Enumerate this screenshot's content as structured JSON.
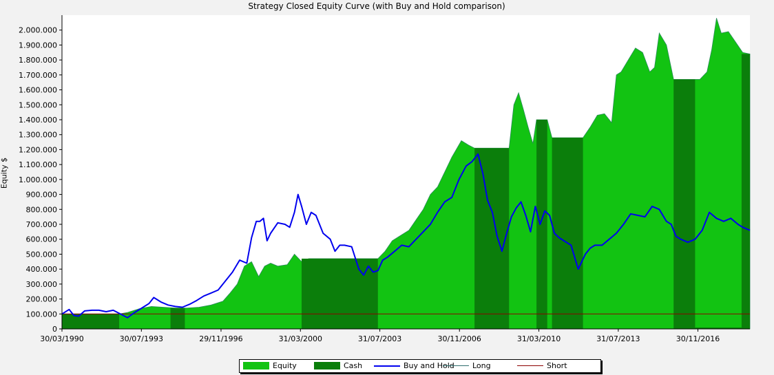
{
  "chart_data": {
    "type": "area",
    "title": "Strategy Closed Equity Curve (with Buy and Hold comparison)",
    "xlabel": "",
    "ylabel": "Equity $",
    "xlim": [
      1990.25,
      2019.1
    ],
    "ylim": [
      0,
      2100000
    ],
    "y_ticks": [
      0,
      100000,
      200000,
      300000,
      400000,
      500000,
      600000,
      700000,
      800000,
      900000,
      1000000,
      1100000,
      1200000,
      1300000,
      1400000,
      1500000,
      1600000,
      1700000,
      1800000,
      1900000,
      2000000
    ],
    "y_tick_labels": [
      "0",
      "100.000",
      "200.000",
      "300.000",
      "400.000",
      "500.000",
      "600.000",
      "700.000",
      "800.000",
      "900.000",
      "1.000.000",
      "1.100.000",
      "1.200.000",
      "1.300.000",
      "1.400.000",
      "1.500.000",
      "1.600.000",
      "1.700.000",
      "1.800.000",
      "1.900.000",
      "2.000.000"
    ],
    "x_tick_labels": [
      "30/03/1990",
      "30/07/1993",
      "29/11/1996",
      "31/03/2000",
      "31/07/2003",
      "30/11/2006",
      "31/03/2010",
      "31/07/2013",
      "30/11/2016"
    ],
    "x_tick_positions": [
      1990.25,
      1993.58,
      1996.92,
      2000.25,
      2003.58,
      2006.92,
      2010.25,
      2013.58,
      2016.92
    ],
    "grid": false,
    "legend_position": "bottom",
    "series": [
      {
        "name": "Equity",
        "kind": "area",
        "color": "#12c312",
        "x": [
          1990.25,
          1992.65,
          1993.0,
          1993.5,
          1994.0,
          1994.5,
          1995.0,
          1995.5,
          1996.0,
          1996.5,
          1997.0,
          1997.3,
          1997.6,
          1997.9,
          1998.2,
          1998.5,
          1998.75,
          1999.0,
          1999.3,
          1999.7,
          2000.0,
          2000.3,
          2000.6,
          2000.8,
          2001.0,
          2003.5,
          2003.8,
          2004.1,
          2004.4,
          2004.8,
          2005.1,
          2005.4,
          2005.7,
          2006.0,
          2006.3,
          2006.6,
          2007.0,
          2007.3,
          2007.55,
          2008.2,
          2009.0,
          2009.2,
          2009.4,
          2009.6,
          2009.8,
          2010.0,
          2010.15,
          2010.35,
          2010.6,
          2010.8,
          2011.2,
          2012.1,
          2012.4,
          2012.7,
          2013.0,
          2013.3,
          2013.5,
          2013.7,
          2014.0,
          2014.3,
          2014.6,
          2014.9,
          2015.1,
          2015.3,
          2015.6,
          2015.9,
          2016.1,
          2017.0,
          2017.3,
          2017.5,
          2017.7,
          2017.9,
          2018.2,
          2018.5,
          2018.8,
          2019.1
        ],
        "values": [
          100000,
          100000,
          110000,
          135000,
          150000,
          145000,
          140000,
          140000,
          145000,
          160000,
          185000,
          240000,
          300000,
          420000,
          450000,
          350000,
          420000,
          440000,
          420000,
          430000,
          500000,
          450000,
          470000,
          470000,
          470000,
          470000,
          520000,
          590000,
          620000,
          660000,
          730000,
          800000,
          900000,
          950000,
          1050000,
          1150000,
          1260000,
          1230000,
          1210000,
          1210000,
          1210000,
          1500000,
          1580000,
          1470000,
          1350000,
          1240000,
          1400000,
          1400000,
          1400000,
          1280000,
          1280000,
          1280000,
          1350000,
          1430000,
          1440000,
          1380000,
          1700000,
          1720000,
          1800000,
          1880000,
          1850000,
          1720000,
          1750000,
          1980000,
          1900000,
          1670000,
          1670000,
          1670000,
          1720000,
          1870000,
          2080000,
          1980000,
          1990000,
          1920000,
          1850000,
          1840000
        ]
      },
      {
        "name": "Cash",
        "kind": "segments",
        "color": "#0b7e0b",
        "segments": [
          [
            1990.25,
            1992.65,
            100000
          ],
          [
            1994.8,
            1995.4,
            140000
          ],
          [
            2000.3,
            2003.5,
            470000
          ],
          [
            2007.55,
            2009.0,
            1210000
          ],
          [
            2010.15,
            2010.6,
            1400000
          ],
          [
            2010.8,
            2012.1,
            1280000
          ],
          [
            2015.9,
            2016.8,
            1670000
          ],
          [
            2016.8,
            2018.75,
            0
          ],
          [
            2018.75,
            2019.1,
            1840000
          ]
        ]
      },
      {
        "name": "Buy and Hold",
        "kind": "line",
        "color": "#0000ee",
        "x": [
          1990.25,
          1990.55,
          1990.75,
          1990.95,
          1991.2,
          1991.5,
          1991.8,
          1992.1,
          1992.4,
          1992.7,
          1993.0,
          1993.3,
          1993.6,
          1993.9,
          1994.1,
          1994.4,
          1994.7,
          1995.0,
          1995.3,
          1995.6,
          1995.9,
          1996.2,
          1996.5,
          1996.8,
          1997.1,
          1997.4,
          1997.7,
          1998.0,
          1998.2,
          1998.4,
          1998.55,
          1998.7,
          1998.85,
          1999.0,
          1999.3,
          1999.6,
          1999.8,
          2000.0,
          2000.15,
          2000.3,
          2000.5,
          2000.7,
          2000.9,
          2001.2,
          2001.5,
          2001.7,
          2001.9,
          2002.1,
          2002.4,
          2002.7,
          2002.9,
          2003.1,
          2003.3,
          2003.5,
          2003.7,
          2003.9,
          2004.2,
          2004.5,
          2004.8,
          2005.1,
          2005.4,
          2005.7,
          2006.0,
          2006.3,
          2006.6,
          2006.9,
          2007.2,
          2007.45,
          2007.7,
          2007.9,
          2008.1,
          2008.3,
          2008.5,
          2008.7,
          2008.9,
          2009.1,
          2009.3,
          2009.5,
          2009.7,
          2009.9,
          2010.1,
          2010.3,
          2010.5,
          2010.7,
          2010.9,
          2011.1,
          2011.3,
          2011.6,
          2011.9,
          2012.2,
          2012.4,
          2012.6,
          2012.9,
          2013.2,
          2013.5,
          2013.8,
          2014.1,
          2014.4,
          2014.7,
          2015.0,
          2015.3,
          2015.6,
          2015.8,
          2016.0,
          2016.2,
          2016.5,
          2016.8,
          2017.1,
          2017.4,
          2017.7,
          2018.0,
          2018.3,
          2018.6,
          2018.8,
          2019.1
        ],
        "values": [
          100000,
          130000,
          90000,
          85000,
          120000,
          125000,
          125000,
          115000,
          125000,
          100000,
          75000,
          110000,
          140000,
          170000,
          210000,
          180000,
          160000,
          150000,
          145000,
          165000,
          190000,
          220000,
          240000,
          260000,
          320000,
          380000,
          460000,
          440000,
          610000,
          720000,
          720000,
          740000,
          590000,
          640000,
          710000,
          700000,
          680000,
          780000,
          900000,
          820000,
          700000,
          780000,
          760000,
          640000,
          600000,
          520000,
          560000,
          560000,
          550000,
          400000,
          360000,
          420000,
          380000,
          390000,
          460000,
          480000,
          520000,
          560000,
          550000,
          600000,
          650000,
          700000,
          780000,
          850000,
          880000,
          1000000,
          1090000,
          1120000,
          1170000,
          1040000,
          860000,
          780000,
          620000,
          520000,
          640000,
          750000,
          810000,
          850000,
          760000,
          650000,
          820000,
          700000,
          790000,
          760000,
          640000,
          610000,
          590000,
          560000,
          400000,
          500000,
          540000,
          560000,
          560000,
          600000,
          640000,
          700000,
          770000,
          760000,
          750000,
          820000,
          800000,
          720000,
          700000,
          620000,
          600000,
          580000,
          600000,
          660000,
          780000,
          740000,
          720000,
          740000,
          700000,
          680000,
          660000
        ]
      },
      {
        "name": "Long",
        "kind": "line",
        "color": "#2f6d6d"
      },
      {
        "name": "Short",
        "kind": "hline",
        "color": "#8b0000",
        "value": 100000
      }
    ]
  },
  "legend": {
    "equity": "Equity",
    "cash": "Cash",
    "buy_hold": "Buy and Hold",
    "long": "Long",
    "short": "Short"
  }
}
